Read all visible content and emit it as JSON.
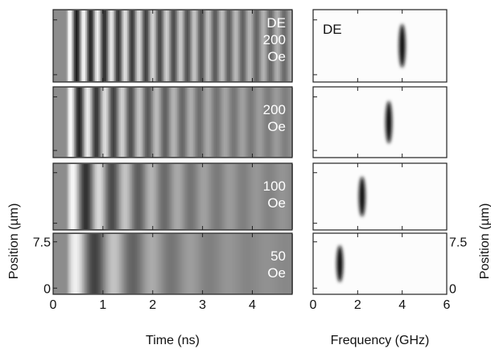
{
  "chart_data": [
    {
      "type": "heatmap",
      "xlabel": "Time (ns)",
      "ylabel": "Position (µm)",
      "xlim": [
        0,
        4.8
      ],
      "xticks": [
        0,
        1,
        2,
        3,
        4
      ],
      "ylim": [
        -1,
        8.9
      ],
      "yticks": [
        0,
        7.5
      ],
      "panel_labels": [
        [
          "DE",
          "200",
          "Oe"
        ],
        [
          "200",
          "Oe"
        ],
        [
          "100",
          "Oe"
        ],
        [
          "50",
          "Oe"
        ]
      ]
    },
    {
      "type": "heatmap",
      "xlabel": "Frequency (GHz)",
      "ylabel": "Position (µm)",
      "xlim": [
        0,
        6
      ],
      "xticks": [
        0,
        2,
        4,
        6
      ],
      "ylim": [
        -1,
        8.9
      ],
      "yticks": [
        0,
        7.5
      ],
      "panel_labels": [
        [
          "DE"
        ]
      ],
      "peaks": [
        4.0,
        3.4,
        2.2,
        1.2
      ]
    }
  ]
}
